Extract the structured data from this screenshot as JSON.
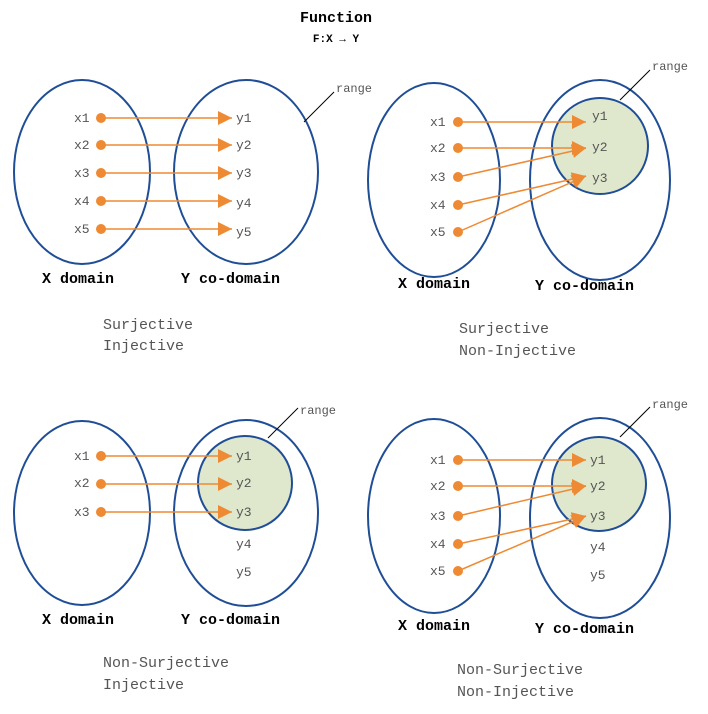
{
  "title": "Function",
  "subtitle": "F:X → Y",
  "colors": {
    "ellipse": "#1f4e96",
    "arrow": "#ee8a33",
    "range_fill": "#dfe7cd"
  },
  "panels": [
    {
      "x_items": [
        "x1",
        "x2",
        "x3",
        "x4",
        "x5"
      ],
      "y_items": [
        "y1",
        "y2",
        "y3",
        "y4",
        "y5"
      ],
      "range_label": "range",
      "x_label": "X domain",
      "y_label": "Y co-domain",
      "caption": [
        "Surjective",
        "Injective"
      ],
      "mapping": [
        [
          "x1",
          "y1"
        ],
        [
          "x2",
          "y2"
        ],
        [
          "x3",
          "y3"
        ],
        [
          "x4",
          "y4"
        ],
        [
          "x5",
          "y5"
        ]
      ]
    },
    {
      "x_items": [
        "x1",
        "x2",
        "x3",
        "x4",
        "x5"
      ],
      "y_items": [
        "y1",
        "y2",
        "y3"
      ],
      "range_label": "range",
      "x_label": "X domain",
      "y_label": "Y co-domain",
      "caption": [
        "Surjective",
        "Non-Injective"
      ],
      "mapping": [
        [
          "x1",
          "y1"
        ],
        [
          "x2",
          "y2"
        ],
        [
          "x3",
          "y2"
        ],
        [
          "x4",
          "y3"
        ],
        [
          "x5",
          "y3"
        ]
      ]
    },
    {
      "x_items": [
        "x1",
        "x2",
        "x3"
      ],
      "y_items": [
        "y1",
        "y2",
        "y3",
        "y4",
        "y5"
      ],
      "range_label": "range",
      "x_label": "X domain",
      "y_label": "Y co-domain",
      "caption": [
        "Non-Surjective",
        "Injective"
      ],
      "mapping": [
        [
          "x1",
          "y1"
        ],
        [
          "x2",
          "y2"
        ],
        [
          "x3",
          "y3"
        ]
      ]
    },
    {
      "x_items": [
        "x1",
        "x2",
        "x3",
        "x4",
        "x5"
      ],
      "y_items": [
        "y1",
        "y2",
        "y3",
        "y4",
        "y5"
      ],
      "range_label": "range",
      "x_label": "X domain",
      "y_label": "Y co-domain",
      "caption": [
        "Non-Surjective",
        "Non-Injective"
      ],
      "mapping": [
        [
          "x1",
          "y1"
        ],
        [
          "x2",
          "y2"
        ],
        [
          "x3",
          "y2"
        ],
        [
          "x4",
          "y3"
        ],
        [
          "x5",
          "y3"
        ]
      ]
    }
  ]
}
